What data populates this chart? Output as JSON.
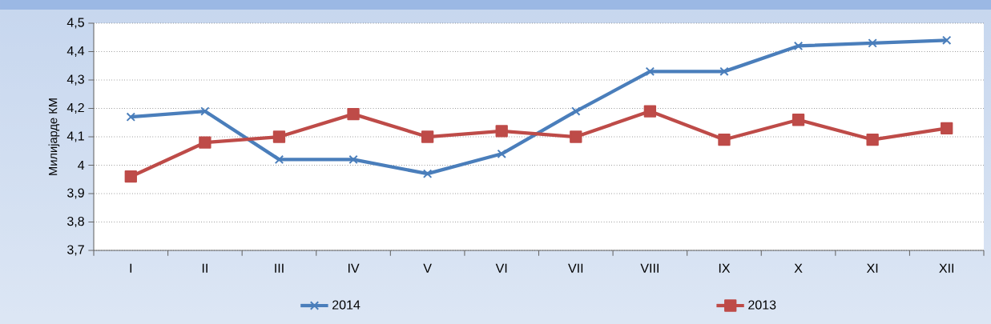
{
  "chart_data": {
    "type": "line",
    "ylabel": "Милијарде КМ",
    "categories": [
      "I",
      "II",
      "III",
      "IV",
      "V",
      "VI",
      "VII",
      "VIII",
      "IX",
      "X",
      "XI",
      "XII"
    ],
    "series": [
      {
        "name": "2014",
        "color": "#4a7ebb",
        "marker": "cross",
        "values": [
          4.17,
          4.19,
          4.02,
          4.02,
          3.97,
          4.04,
          4.19,
          4.33,
          4.33,
          4.42,
          4.43,
          4.44
        ]
      },
      {
        "name": "2013",
        "color": "#be4b48",
        "marker": "square",
        "values": [
          3.96,
          4.08,
          4.1,
          4.18,
          4.1,
          4.12,
          4.1,
          4.19,
          4.09,
          4.16,
          4.09,
          4.13
        ]
      }
    ],
    "ylim": [
      3.7,
      4.5
    ],
    "yticks": [
      {
        "value": 3.7,
        "label": "3,7"
      },
      {
        "value": 3.8,
        "label": "3,8"
      },
      {
        "value": 3.9,
        "label": "3,9"
      },
      {
        "value": 4.0,
        "label": "4"
      },
      {
        "value": 4.1,
        "label": "4,1"
      },
      {
        "value": 4.2,
        "label": "4,2"
      },
      {
        "value": 4.3,
        "label": "4,3"
      },
      {
        "value": 4.4,
        "label": "4,4"
      },
      {
        "value": 4.5,
        "label": "4,5"
      }
    ],
    "grid": "y",
    "legend": "bottom",
    "line_style": "solid"
  }
}
